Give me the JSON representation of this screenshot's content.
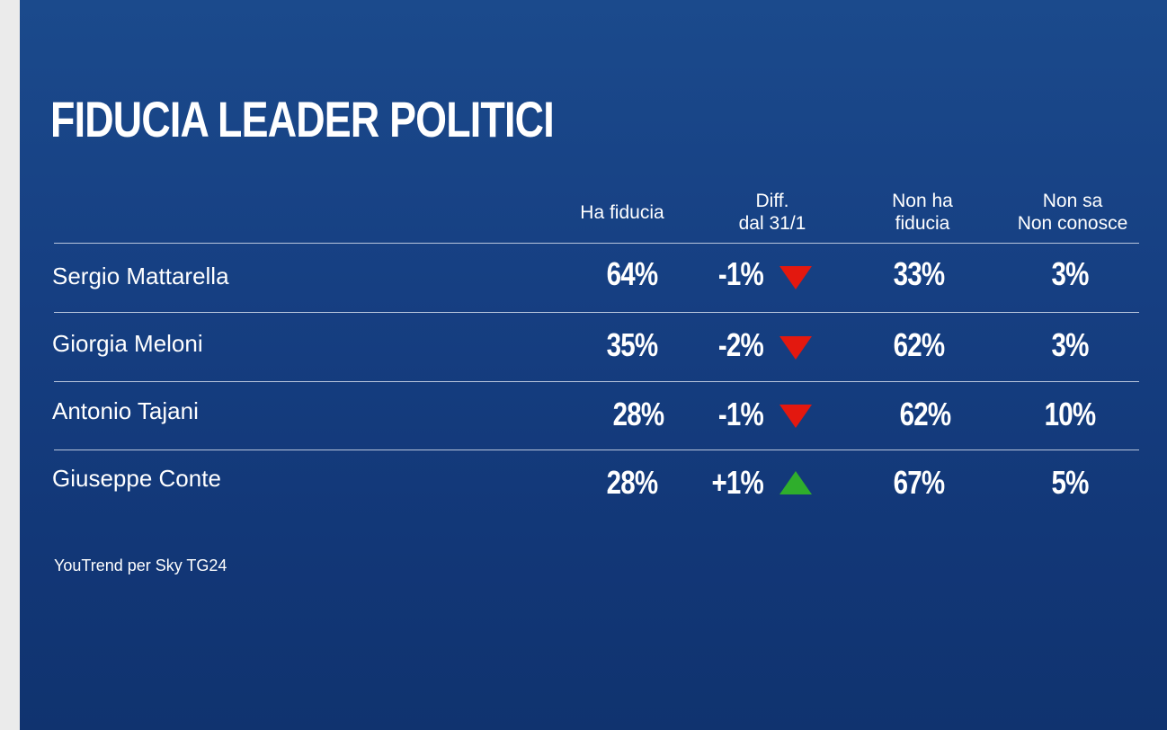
{
  "title": "FIDUCIA LEADER POLITICI",
  "headers": {
    "trust": "Ha fiducia",
    "diff_l1": "Diff.",
    "diff_l2": "dal 31/1",
    "notrust_l1": "Non ha",
    "notrust_l2": "fiducia",
    "dk_l1": "Non sa",
    "dk_l2": "Non conosce"
  },
  "rows": [
    {
      "name": "Sergio Mattarella",
      "trust": "64%",
      "diff": "-1%",
      "trend": "down",
      "notrust": "33%",
      "dk": "3%"
    },
    {
      "name": "Giorgia Meloni",
      "trust": "35%",
      "diff": "-2%",
      "trend": "down",
      "notrust": "62%",
      "dk": "3%"
    },
    {
      "name": "Antonio Tajani",
      "trust": "28%",
      "diff": "-1%",
      "trend": "down",
      "notrust": "62%",
      "dk": "10%"
    },
    {
      "name": "Giuseppe Conte",
      "trust": "28%",
      "diff": "+1%",
      "trend": "up",
      "notrust": "67%",
      "dk": "5%"
    }
  ],
  "source": "YouTrend per Sky TG24",
  "colors": {
    "down": "#e3180f",
    "up": "#2fae2c"
  },
  "chart_data": {
    "type": "table",
    "title": "FIDUCIA LEADER POLITICI",
    "columns": [
      "Ha fiducia",
      "Diff. dal 31/1",
      "Non ha fiducia",
      "Non sa Non conosce"
    ],
    "rows": [
      "Sergio Mattarella",
      "Giorgia Meloni",
      "Antonio Tajani",
      "Giuseppe Conte"
    ],
    "series": [
      {
        "name": "Ha fiducia",
        "values": [
          64,
          35,
          28,
          28
        ]
      },
      {
        "name": "Diff. dal 31/1",
        "values": [
          -1,
          -2,
          -1,
          1
        ]
      },
      {
        "name": "Non ha fiducia",
        "values": [
          33,
          62,
          62,
          67
        ]
      },
      {
        "name": "Non sa Non conosce",
        "values": [
          3,
          3,
          10,
          5
        ]
      }
    ]
  }
}
